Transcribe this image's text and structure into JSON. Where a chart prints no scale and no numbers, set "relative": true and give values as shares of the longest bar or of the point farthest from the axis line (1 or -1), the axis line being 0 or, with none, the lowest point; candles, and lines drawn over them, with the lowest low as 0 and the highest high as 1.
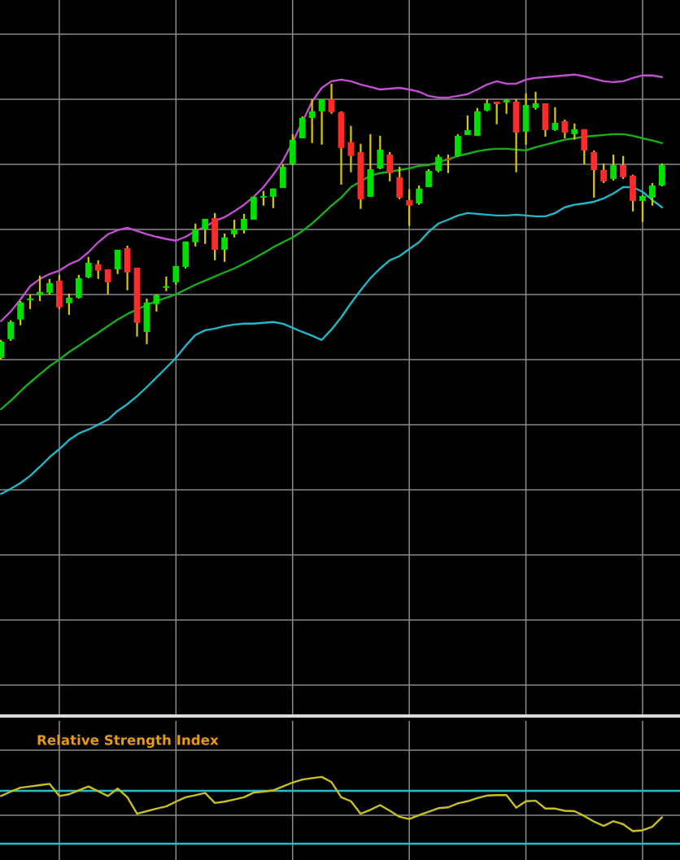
{
  "chart_data": [
    {
      "type": "candlestick",
      "relative": true,
      "grid": true,
      "tick_labels": false,
      "categories": [
        null,
        null,
        null,
        null,
        null,
        null,
        null,
        null,
        null,
        null,
        null,
        null,
        null,
        null,
        null,
        null,
        null,
        null,
        null,
        null,
        null,
        null,
        null,
        null,
        null,
        null,
        null,
        null,
        null,
        null,
        null,
        null,
        null,
        null,
        null,
        null,
        null,
        null,
        null,
        null,
        null,
        null,
        null,
        null,
        null,
        null,
        null,
        null,
        null,
        null,
        null,
        null,
        null,
        null,
        null,
        null,
        null,
        null,
        null,
        null,
        null,
        null,
        null,
        null,
        null,
        null,
        null,
        null,
        null
      ],
      "ohlc": [
        [
          0.006,
          0.071,
          0,
          0.065
        ],
        [
          0.074,
          0.142,
          0.068,
          0.136
        ],
        [
          0.145,
          0.212,
          0.124,
          0.207
        ],
        [
          0.215,
          0.236,
          0.183,
          0.221
        ],
        [
          0.233,
          0.304,
          0.212,
          0.245
        ],
        [
          0.242,
          0.292,
          0.236,
          0.277
        ],
        [
          0.286,
          0.307,
          0.183,
          0.189
        ],
        [
          0.204,
          0.239,
          0.162,
          0.224
        ],
        [
          0.224,
          0.307,
          0.221,
          0.295
        ],
        [
          0.298,
          0.372,
          0.295,
          0.351
        ],
        [
          0.345,
          0.36,
          0.292,
          0.322
        ],
        [
          0.327,
          0.327,
          0.236,
          0.28
        ],
        [
          0.327,
          0.398,
          0.31,
          0.398
        ],
        [
          0.404,
          0.413,
          0.251,
          0.316
        ],
        [
          0.333,
          0.333,
          0.083,
          0.133
        ],
        [
          0.1,
          0.221,
          0.056,
          0.207
        ],
        [
          0.201,
          0.236,
          0.174,
          0.233
        ],
        [
          0.26,
          0.301,
          0.248,
          0.266
        ],
        [
          0.28,
          0.339,
          0.271,
          0.339
        ],
        [
          0.336,
          0.428,
          0.33,
          0.428
        ],
        [
          0.425,
          0.493,
          0.41,
          0.472
        ],
        [
          0.472,
          0.51,
          0.419,
          0.51
        ],
        [
          0.513,
          0.531,
          0.36,
          0.398
        ],
        [
          0.398,
          0.457,
          0.354,
          0.443
        ],
        [
          0.454,
          0.507,
          0.443,
          0.472
        ],
        [
          0.469,
          0.528,
          0.457,
          0.51
        ],
        [
          0.507,
          0.59,
          0.507,
          0.59
        ],
        [
          0.587,
          0.611,
          0.558,
          0.593
        ],
        [
          0.59,
          0.62,
          0.549,
          0.62
        ],
        [
          0.622,
          0.708,
          0.622,
          0.699
        ],
        [
          0.708,
          0.817,
          0.705,
          0.797
        ],
        [
          0.802,
          0.882,
          0.802,
          0.876
        ],
        [
          0.876,
          0.944,
          0.785,
          0.9
        ],
        [
          0.9,
          0.944,
          0.779,
          0.944
        ],
        [
          0.944,
          1.0,
          0.891,
          0.897
        ],
        [
          0.897,
          0.9,
          0.634,
          0.767
        ],
        [
          0.788,
          0.847,
          0.679,
          0.738
        ],
        [
          0.752,
          0.782,
          0.546,
          0.581
        ],
        [
          0.59,
          0.817,
          0.59,
          0.69
        ],
        [
          0.693,
          0.811,
          0.69,
          0.761
        ],
        [
          0.743,
          0.752,
          0.646,
          0.676
        ],
        [
          0.661,
          0.699,
          0.581,
          0.587
        ],
        [
          0.578,
          0.617,
          0.484,
          0.558
        ],
        [
          0.566,
          0.631,
          0.561,
          0.62
        ],
        [
          0.625,
          0.69,
          0.625,
          0.684
        ],
        [
          0.684,
          0.743,
          0.679,
          0.735
        ],
        [
          0.729,
          0.743,
          0.676,
          0.723
        ],
        [
          0.738,
          0.817,
          0.735,
          0.811
        ],
        [
          0.814,
          0.885,
          0.814,
          0.832
        ],
        [
          0.811,
          0.912,
          0.811,
          0.9
        ],
        [
          0.903,
          0.944,
          0.9,
          0.929
        ],
        [
          0.935,
          0.935,
          0.853,
          0.926
        ],
        [
          0.932,
          0.944,
          0.891,
          0.941
        ],
        [
          0.935,
          0.944,
          0.679,
          0.823
        ],
        [
          0.826,
          0.965,
          0.779,
          0.923
        ],
        [
          0.912,
          0.971,
          0.906,
          0.929
        ],
        [
          0.929,
          0.929,
          0.808,
          0.832
        ],
        [
          0.832,
          0.915,
          0.829,
          0.858
        ],
        [
          0.864,
          0.87,
          0.802,
          0.823
        ],
        [
          0.817,
          0.856,
          0.797,
          0.835
        ],
        [
          0.835,
          0.835,
          0.708,
          0.758
        ],
        [
          0.752,
          0.758,
          0.587,
          0.687
        ],
        [
          0.687,
          0.711,
          0.64,
          0.646
        ],
        [
          0.655,
          0.743,
          0.649,
          0.705
        ],
        [
          0.705,
          0.738,
          0.655,
          0.661
        ],
        [
          0.667,
          0.67,
          0.537,
          0.575
        ],
        [
          0.575,
          0.596,
          0.499,
          0.593
        ],
        [
          0.587,
          0.64,
          0.558,
          0.631
        ],
        [
          0.631,
          0.711,
          0.628,
          0.705
        ]
      ],
      "series": [
        {
          "type": "line",
          "color": "#c050d0",
          "values": [
            0.139,
            0.174,
            0.218,
            0.266,
            0.292,
            0.31,
            0.322,
            0.345,
            0.36,
            0.389,
            0.425,
            0.454,
            0.469,
            0.478,
            0.466,
            0.454,
            0.445,
            0.437,
            0.431,
            0.445,
            0.466,
            0.481,
            0.502,
            0.516,
            0.537,
            0.561,
            0.59,
            0.625,
            0.67,
            0.72,
            0.788,
            null,
            0.935,
            0.985,
            1.009,
            1.015,
            1.009,
            0.997,
            0.988,
            0.979,
            0.982,
            0.985,
            0.979,
            0.971,
            0.956,
            0.95,
            0.95,
            0.956,
            0.962,
            0.979,
            0.997,
            1.009,
            1.0,
            1.0,
            1.015,
            1.021,
            1.024,
            1.027,
            1.03,
            1.033,
            1.027,
            1.018,
            1.009,
            1.006,
            1.009,
            1.021,
            1.03,
            1.03,
            1.024
          ]
        },
        {
          "type": "line",
          "color": "#18b018",
          "values": [
            -0.18,
            -0.15,
            -0.115,
            -0.083,
            -0.053,
            -0.024,
            0,
            0.027,
            0.05,
            0.074,
            0.097,
            0.121,
            0.145,
            0.165,
            null,
            0.198,
            0.212,
            0.224,
            0.236,
            0.254,
            0.271,
            0.286,
            0.301,
            0.316,
            0.33,
            0.348,
            0.366,
            0.386,
            0.407,
            0.425,
            0.443,
            0.466,
            0.493,
            0.525,
            0.558,
            0.587,
            0.625,
            null,
            0.667,
            0.676,
            0.681,
            0.687,
            0.693,
            0.702,
            0.705,
            0.717,
            0.726,
            0.738,
            0.746,
            0.755,
            0.761,
            0.764,
            0.764,
            0.761,
            0.758,
            0.77,
            0.779,
            0.788,
            0.797,
            0.802,
            0.808,
            0.811,
            0.814,
            0.817,
            0.817,
            0.811,
            0.802,
            0.794,
            0.785
          ]
        },
        {
          "type": "line",
          "color": "#20b8c8",
          "values": [
            -0.487,
            -0.469,
            -0.448,
            -0.422,
            -0.389,
            -0.354,
            -0.325,
            -0.292,
            -0.268,
            -0.254,
            -0.236,
            -0.218,
            -0.186,
            -0.162,
            -0.133,
            -0.1,
            -0.065,
            -0.03,
            0.006,
            0.05,
            0.089,
            0.106,
            0.112,
            0.121,
            0.127,
            0.13,
            0.13,
            0.133,
            0.136,
            0.13,
            0.115,
            0.1,
            0.086,
            0.071,
            0.109,
            0.153,
            0.204,
            0.251,
            0.295,
            0.33,
            0.36,
            0.375,
            0.401,
            0.425,
            0.463,
            0.493,
            0.507,
            0.522,
            0.531,
            0.528,
            0.525,
            0.522,
            0.522,
            0.525,
            0.522,
            0.519,
            0.519,
            0.531,
            0.552,
            0.561,
            0.566,
            0.572,
            0.584,
            0.602,
            0.625,
            0.625,
            0.608,
            0.578,
            0.552
          ]
        }
      ]
    },
    {
      "type": "line",
      "title": "Relative Strength Index",
      "relative": true,
      "grid": true,
      "tick_labels": false,
      "categories": [
        null,
        null,
        null,
        null,
        null,
        null,
        null,
        null,
        null,
        null,
        null,
        null,
        null,
        null,
        null,
        null,
        null,
        null,
        null,
        null,
        null,
        null,
        null,
        null,
        null,
        null,
        null,
        null,
        null,
        null,
        null,
        null,
        null,
        null,
        null,
        null,
        null,
        null,
        null,
        null,
        null,
        null,
        null,
        null,
        null,
        null,
        null,
        null,
        null,
        null,
        null,
        null,
        null,
        null,
        null,
        null,
        null,
        null,
        null,
        null,
        null,
        null,
        null,
        null,
        null,
        null,
        null,
        null,
        null
      ],
      "series": [
        {
          "color": "#c8c020",
          "values": [
            0.714,
            0.779,
            0.838,
            0.857,
            0.877,
            0.896,
            0.714,
            0.74,
            0.799,
            0.857,
            0.786,
            0.714,
            0.825,
            0.695,
            0.448,
            0.487,
            0.526,
            0.558,
            0.63,
            0.695,
            0.727,
            0.76,
            0.61,
            0.63,
            0.662,
            0.695,
            0.766,
            0.779,
            0.799,
            0.857,
            0.916,
            0.961,
            0.981,
            1.0,
            0.922,
            0.695,
            0.636,
            0.448,
            0.506,
            0.578,
            0.493,
            0.402,
            0.37,
            0.428,
            0.48,
            0.532,
            0.545,
            0.604,
            0.636,
            0.682,
            0.721,
            0.727,
            0.727,
            0.539,
            0.636,
            0.643,
            0.526,
            0.526,
            0.493,
            0.487,
            0.415,
            0.331,
            0.266,
            0.337,
            0.292,
            0.188,
            0.201,
            0.253,
            0.396
          ]
        }
      ],
      "ref_lines": [
        {
          "axis": "y",
          "value": 0.792,
          "color": "#20c0c8"
        },
        {
          "axis": "y",
          "value": 0,
          "color": "#20c0c8"
        }
      ]
    }
  ]
}
